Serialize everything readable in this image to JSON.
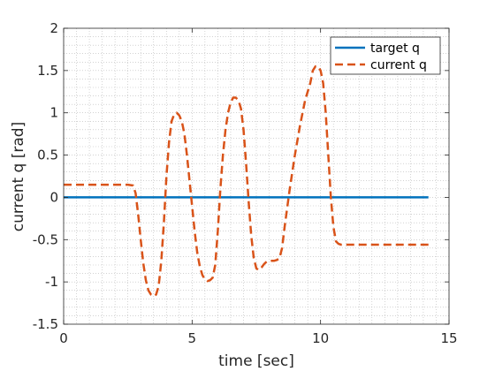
{
  "chart_data": {
    "type": "line",
    "title": "",
    "xlabel": "time [sec]",
    "ylabel": "current q [rad]",
    "xlim": [
      0,
      15
    ],
    "ylim": [
      -1.5,
      2
    ],
    "xticks": [
      0,
      5,
      10,
      15
    ],
    "yticks": [
      -1.5,
      -1,
      -0.5,
      0,
      0.5,
      1,
      1.5,
      2
    ],
    "xtick_labels": [
      "0",
      "5",
      "10",
      "15"
    ],
    "ytick_labels": [
      "-1.5",
      "-1",
      "-0.5",
      "0",
      "0.5",
      "1",
      "1.5",
      "2"
    ],
    "grid": "minor dotted",
    "legend": "top-right",
    "series": [
      {
        "name": "target q",
        "color": "#0072BD",
        "style": "solid",
        "x": [
          0,
          14.2
        ],
        "y": [
          0,
          0
        ]
      },
      {
        "name": "current q",
        "color": "#D95319",
        "style": "dashed",
        "x": [
          0,
          0.5,
          1.0,
          1.5,
          2.0,
          2.5,
          2.7,
          2.8,
          2.9,
          3.0,
          3.1,
          3.2,
          3.3,
          3.4,
          3.5,
          3.6,
          3.7,
          3.8,
          3.9,
          4.0,
          4.1,
          4.2,
          4.3,
          4.4,
          4.5,
          4.6,
          4.7,
          4.8,
          4.9,
          5.0,
          5.1,
          5.2,
          5.3,
          5.4,
          5.5,
          5.6,
          5.7,
          5.8,
          5.9,
          6.0,
          6.1,
          6.2,
          6.3,
          6.4,
          6.5,
          6.6,
          6.7,
          6.8,
          6.9,
          7.0,
          7.1,
          7.2,
          7.3,
          7.4,
          7.5,
          7.6,
          7.7,
          7.8,
          7.9,
          8.0,
          8.1,
          8.2,
          8.3,
          8.4,
          8.5,
          8.6,
          8.8,
          9.0,
          9.2,
          9.4,
          9.6,
          9.7,
          9.8,
          9.9,
          10.0,
          10.1,
          10.2,
          10.3,
          10.4,
          10.5,
          10.6,
          10.7,
          10.8,
          10.9,
          11.0,
          11.1,
          11.2,
          11.3,
          11.4,
          11.5,
          11.6,
          11.7,
          11.8,
          11.9,
          12.0,
          12.5,
          13.0,
          13.5,
          14.2
        ],
        "y": [
          0.15,
          0.15,
          0.15,
          0.15,
          0.15,
          0.15,
          0.14,
          0.05,
          -0.2,
          -0.5,
          -0.78,
          -0.98,
          -1.1,
          -1.15,
          -1.17,
          -1.15,
          -1.05,
          -0.75,
          -0.3,
          0.25,
          0.65,
          0.9,
          0.98,
          1.0,
          0.97,
          0.9,
          0.75,
          0.5,
          0.2,
          -0.1,
          -0.4,
          -0.65,
          -0.82,
          -0.92,
          -0.97,
          -0.99,
          -0.98,
          -0.95,
          -0.8,
          -0.4,
          0.1,
          0.5,
          0.8,
          1.0,
          1.12,
          1.18,
          1.18,
          1.15,
          1.05,
          0.8,
          0.4,
          -0.05,
          -0.45,
          -0.72,
          -0.84,
          -0.86,
          -0.83,
          -0.79,
          -0.76,
          -0.75,
          -0.75,
          -0.75,
          -0.74,
          -0.72,
          -0.6,
          -0.35,
          0.1,
          0.5,
          0.85,
          1.15,
          1.35,
          1.5,
          1.55,
          1.55,
          1.5,
          1.35,
          1.0,
          0.5,
          0.0,
          -0.35,
          -0.52,
          -0.55,
          -0.56,
          -0.56,
          -0.56,
          -0.56,
          -0.56,
          -0.56,
          -0.56,
          -0.56,
          -0.56,
          -0.56,
          -0.56,
          -0.56,
          -0.56,
          -0.56,
          -0.56,
          -0.56,
          -0.56
        ]
      }
    ]
  }
}
